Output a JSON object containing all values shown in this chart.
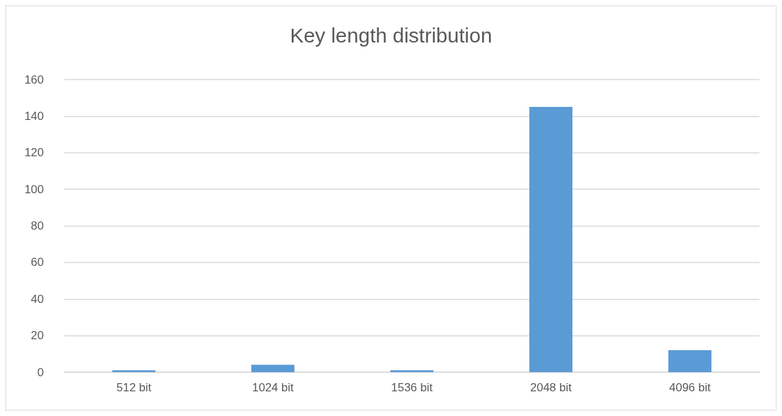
{
  "chart_data": {
    "type": "bar",
    "title": "Key length distribution",
    "categories": [
      "512 bit",
      "1024 bit",
      "1536 bit",
      "2048 bit",
      "4096 bit"
    ],
    "values": [
      1,
      4,
      1,
      145,
      12
    ],
    "color": "#5b9bd5",
    "ylim": [
      0,
      160
    ],
    "yticks": [
      0,
      20,
      40,
      60,
      80,
      100,
      120,
      140,
      160
    ],
    "grid": "y"
  }
}
